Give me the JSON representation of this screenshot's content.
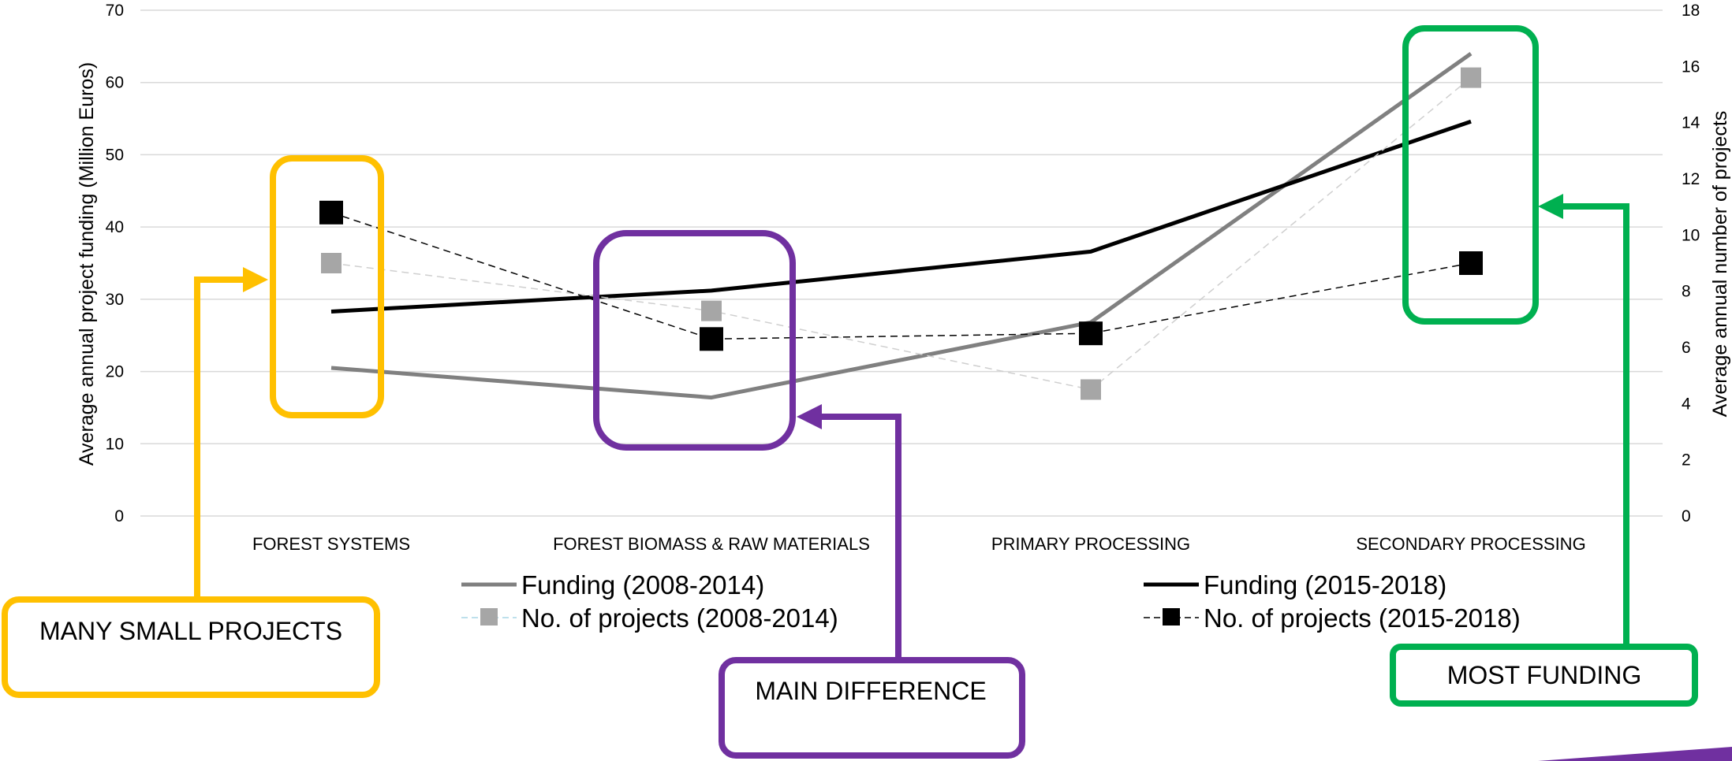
{
  "chart_data": {
    "type": "line",
    "categories": [
      "FOREST SYSTEMS",
      "FOREST BIOMASS & RAW MATERIALS",
      "PRIMARY PROCESSING",
      "SECONDARY PROCESSING"
    ],
    "ylabel_left": "Average annual project funding (Million Euros)",
    "ylabel_right": "Average annual number of projects",
    "ylim_left": [
      0,
      70
    ],
    "ylim_right": [
      0,
      18
    ],
    "yticks_left": [
      "0",
      "10",
      "20",
      "30",
      "40",
      "50",
      "60",
      "70"
    ],
    "yticks_right": [
      "0",
      "2",
      "4",
      "6",
      "8",
      "10",
      "12",
      "14",
      "16",
      "18"
    ],
    "grid": true,
    "legend_position": "bottom",
    "series": [
      {
        "name": "Funding (2008-2014)",
        "axis": "left",
        "style": "solid",
        "color": "#808080",
        "values": [
          20.5,
          16.4,
          26.8,
          64.0
        ]
      },
      {
        "name": "Funding (2015-2018)",
        "axis": "left",
        "style": "solid",
        "color": "#000000",
        "values": [
          28.3,
          31.2,
          36.6,
          54.6
        ]
      },
      {
        "name": "No. of projects (2008-2014)",
        "axis": "right",
        "style": "dashed-marker",
        "color": "#a6a6a6",
        "values": [
          9.0,
          7.3,
          4.5,
          15.6
        ]
      },
      {
        "name": "No. of projects (2015-2018)",
        "axis": "right",
        "style": "dashed-marker",
        "color": "#000000",
        "values": [
          10.8,
          6.3,
          6.5,
          9.0
        ]
      }
    ],
    "annotations": [
      {
        "text": "MANY SMALL PROJECTS",
        "color": "#ffc000",
        "target": "FOREST SYSTEMS"
      },
      {
        "text": "MAIN DIFFERENCE",
        "color": "#7030a0",
        "target": "FOREST BIOMASS & RAW MATERIALS"
      },
      {
        "text": "MOST FUNDING",
        "color": "#00b050",
        "target": "SECONDARY PROCESSING"
      }
    ]
  },
  "decor": {
    "corner_accent_color": "#7030a0"
  }
}
